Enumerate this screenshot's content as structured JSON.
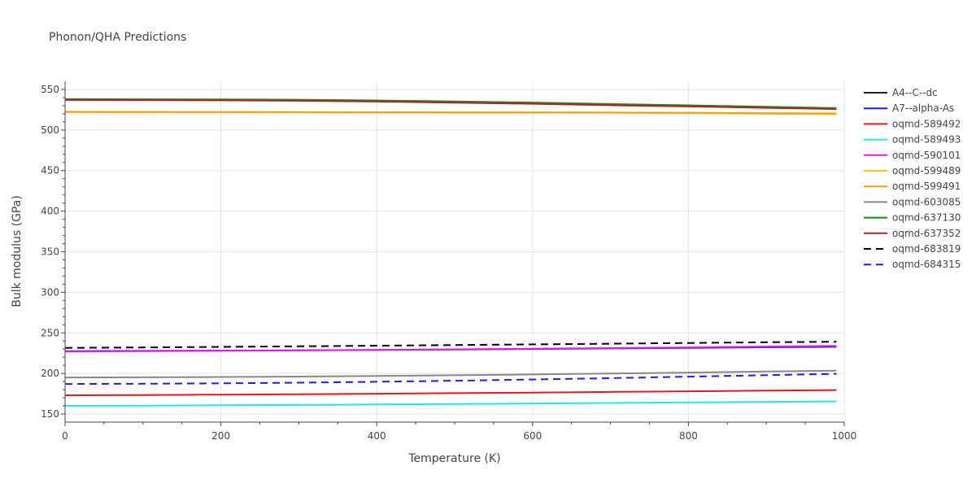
{
  "chart_data": {
    "type": "line",
    "title": "Phonon/QHA Predictions",
    "xlabel": "Temperature (K)",
    "ylabel": "Bulk modulus (GPa)",
    "xlim": [
      0,
      1000
    ],
    "ylim": [
      140,
      560
    ],
    "xticks": [
      0,
      200,
      400,
      600,
      800,
      1000
    ],
    "yticks": [
      150,
      200,
      250,
      300,
      350,
      400,
      450,
      500,
      550
    ],
    "grid": true,
    "legend_position": "right",
    "x": [
      0,
      100,
      200,
      300,
      400,
      500,
      600,
      700,
      800,
      900,
      990
    ],
    "series": [
      {
        "name": "A4--C--dc",
        "color": "#222222",
        "dash": "solid",
        "values": [
          537.5,
          537.3,
          537.0,
          536.6,
          535.6,
          534.3,
          532.7,
          530.9,
          529.4,
          527.7,
          526.0
        ]
      },
      {
        "name": "A7--alpha-As",
        "color": "#1f1fdd",
        "dash": "solid",
        "values": [
          227.5,
          227.8,
          228.1,
          228.5,
          229.0,
          229.5,
          230.1,
          230.8,
          231.5,
          232.2,
          232.8
        ]
      },
      {
        "name": "oqmd-589492",
        "color": "#e31a1c",
        "dash": "solid",
        "values": [
          173.0,
          173.4,
          173.9,
          174.4,
          175.0,
          175.7,
          176.4,
          177.2,
          178.0,
          178.8,
          179.5
        ]
      },
      {
        "name": "oqmd-589493",
        "color": "#22e6ee",
        "dash": "solid",
        "values": [
          160.0,
          160.3,
          160.7,
          161.2,
          161.8,
          162.4,
          163.0,
          163.6,
          164.3,
          165.0,
          165.6
        ]
      },
      {
        "name": "oqmd-590101",
        "color": "#e619e6",
        "dash": "solid",
        "values": [
          227.0,
          227.4,
          227.9,
          228.4,
          229.0,
          229.7,
          230.4,
          231.2,
          232.1,
          233.1,
          234.0
        ]
      },
      {
        "name": "oqmd-599489",
        "color": "#f0c419",
        "dash": "solid",
        "values": [
          522.0,
          521.9,
          521.8,
          521.6,
          521.4,
          521.3,
          521.3,
          521.1,
          520.7,
          520.0,
          519.5
        ]
      },
      {
        "name": "oqmd-599491",
        "color": "#f2a114",
        "dash": "solid",
        "values": [
          522.5,
          522.4,
          522.3,
          522.1,
          521.9,
          521.8,
          521.8,
          521.6,
          521.3,
          520.8,
          520.5
        ]
      },
      {
        "name": "oqmd-603085",
        "color": "#888888",
        "dash": "solid",
        "values": [
          195.0,
          195.2,
          195.6,
          196.1,
          196.8,
          197.7,
          198.7,
          199.8,
          201.0,
          202.3,
          203.5
        ]
      },
      {
        "name": "oqmd-637130",
        "color": "#1a8a1a",
        "dash": "solid",
        "values": [
          538.0,
          537.8,
          537.6,
          537.3,
          536.4,
          535.2,
          533.8,
          532.0,
          530.4,
          528.6,
          527.0
        ]
      },
      {
        "name": "oqmd-637352",
        "color": "#b22222",
        "dash": "solid",
        "values": [
          537.0,
          536.8,
          536.5,
          536.0,
          535.0,
          533.7,
          532.3,
          530.5,
          529.0,
          527.3,
          525.8
        ]
      },
      {
        "name": "oqmd-683819",
        "color": "#000000",
        "dash": "dash",
        "values": [
          231.5,
          232.0,
          232.7,
          233.4,
          234.2,
          235.0,
          235.8,
          236.6,
          237.5,
          238.4,
          239.0
        ]
      },
      {
        "name": "oqmd-684315",
        "color": "#1f1fdd",
        "dash": "dash",
        "values": [
          187.0,
          187.3,
          187.8,
          188.6,
          189.7,
          191.0,
          192.5,
          194.2,
          196.0,
          197.8,
          199.5
        ]
      }
    ]
  }
}
